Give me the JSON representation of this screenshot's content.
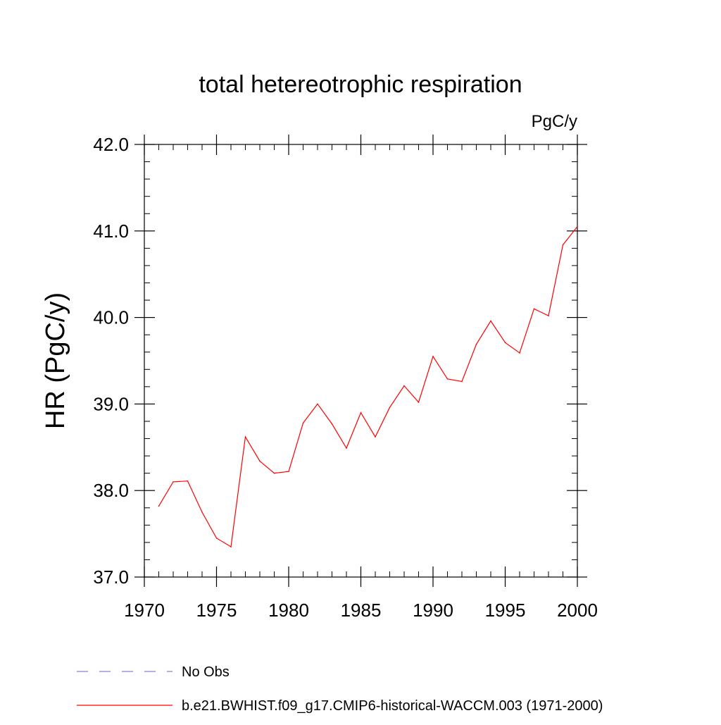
{
  "chart_data": {
    "type": "line",
    "title": "total hetereotrophic respiration",
    "units": "PgC/y",
    "ylabel": "HR  (PgC/y)",
    "xlabel": "",
    "xlim": [
      1970,
      2000
    ],
    "ylim": [
      37.0,
      42.0
    ],
    "x_ticks": [
      1970,
      1975,
      1980,
      1985,
      1990,
      1995,
      2000
    ],
    "x_tick_labels": [
      "1970",
      "1975",
      "1980",
      "1985",
      "1990",
      "1995",
      "2000"
    ],
    "y_ticks": [
      37.0,
      38.0,
      39.0,
      40.0,
      41.0,
      42.0
    ],
    "y_tick_labels": [
      "37.0",
      "38.0",
      "39.0",
      "40.0",
      "41.0",
      "42.0"
    ],
    "x_minor_step": 1,
    "y_minor_step": 0.2,
    "series": [
      {
        "name": "b.e21.BWHIST.f09_g17.CMIP6-historical-WACCM.003 (1971-2000)",
        "color": "#ff0000",
        "x": [
          1971,
          1972,
          1973,
          1974,
          1975,
          1976,
          1977,
          1978,
          1979,
          1980,
          1981,
          1982,
          1983,
          1984,
          1985,
          1986,
          1987,
          1988,
          1989,
          1990,
          1991,
          1992,
          1993,
          1994,
          1995,
          1996,
          1997,
          1998,
          1999,
          2000
        ],
        "y": [
          37.82,
          38.1,
          38.11,
          37.75,
          37.45,
          37.35,
          38.62,
          38.34,
          38.2,
          38.22,
          38.78,
          39.0,
          38.77,
          38.49,
          38.9,
          38.62,
          38.96,
          39.21,
          39.02,
          39.55,
          39.29,
          39.26,
          39.69,
          39.96,
          39.71,
          39.59,
          40.1,
          40.02,
          40.84,
          41.05
        ]
      }
    ],
    "legend": {
      "placement": "bottom-left",
      "entries": [
        {
          "label": "No Obs",
          "color": "#8a7fd6",
          "style": "dashed"
        },
        {
          "label": "b.e21.BWHIST.f09_g17.CMIP6-historical-WACCM.003 (1971-2000)",
          "color": "#ff0000",
          "style": "solid"
        }
      ]
    }
  }
}
